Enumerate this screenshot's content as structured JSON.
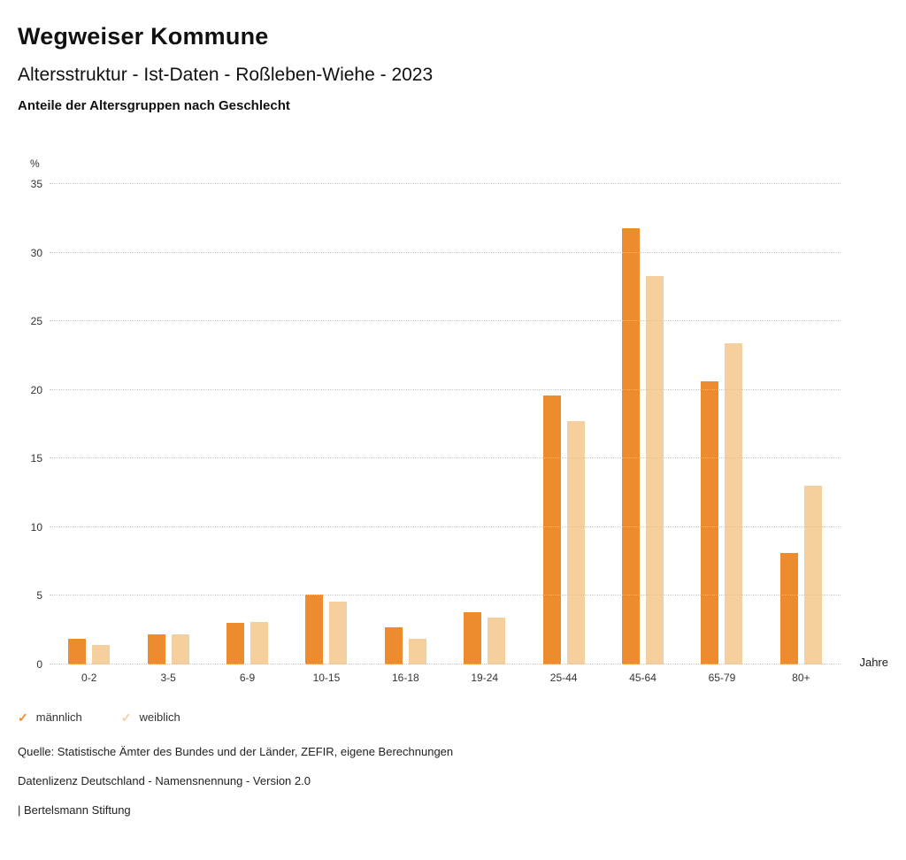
{
  "header": {
    "title": "Wegweiser Kommune",
    "subtitle": "Altersstruktur - Ist-Daten - Roßleben-Wiehe - 2023",
    "description": "Anteile der Altersgruppen nach Geschlecht"
  },
  "chart_data": {
    "type": "bar",
    "title": "Anteile der Altersgruppen nach Geschlecht",
    "categories": [
      "0-2",
      "3-5",
      "6-9",
      "10-15",
      "16-18",
      "19-24",
      "25-44",
      "45-64",
      "65-79",
      "80+"
    ],
    "series": [
      {
        "name": "männlich",
        "key": "maennlich",
        "color": "#ED8B2F",
        "values": [
          1.9,
          2.2,
          3.0,
          5.1,
          2.7,
          3.8,
          19.6,
          31.8,
          20.6,
          8.1
        ]
      },
      {
        "name": "weiblich",
        "key": "weiblich",
        "color": "#F6CF9E",
        "values": [
          1.4,
          2.2,
          3.1,
          4.6,
          1.9,
          3.4,
          17.7,
          28.3,
          23.4,
          13.0
        ]
      }
    ],
    "ylabel_unit": "%",
    "xlabel_unit": "Jahre",
    "ylim": [
      0,
      35
    ],
    "ytick_step": 5,
    "grid": "horizontal-dotted",
    "legend_position": "bottom-left",
    "legend_check_glyph": "✓"
  },
  "footer": {
    "source": "Quelle: Statistische Ämter des Bundes und der Länder, ZEFIR, eigene Berechnungen",
    "license": "Datenlizenz Deutschland - Namensnennung - Version 2.0",
    "attribution": "| Bertelsmann Stiftung"
  }
}
